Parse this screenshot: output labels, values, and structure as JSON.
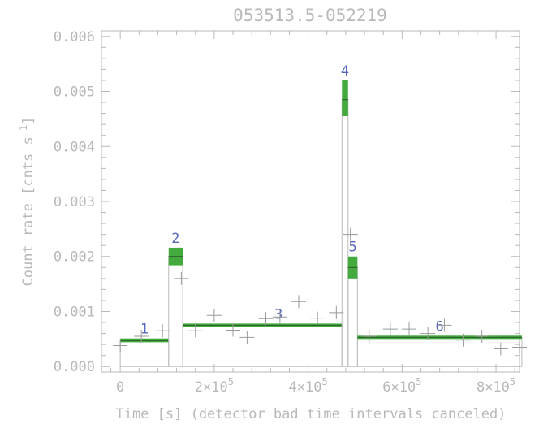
{
  "chart_data": {
    "type": "line",
    "title": "053513.5-052219",
    "xlabel": "Time [s] (detector bad time intervals canceled)",
    "ylabel": "Count rate [cnts s^-1]",
    "xlim": [
      -40000,
      850000
    ],
    "ylim": [
      -0.0001,
      0.0061
    ],
    "grid": false,
    "legend": "none",
    "colors": {
      "axis": "#b9b9b9",
      "block_fill": "#44aa3e",
      "segment_label": "#5566bb",
      "data_cross": "#999999",
      "outline": "#bbbbbb"
    },
    "x_ticks": [
      {
        "value": 0,
        "base": "0",
        "exponent": ""
      },
      {
        "value": 200000,
        "base": "2×10",
        "exponent": "5"
      },
      {
        "value": 400000,
        "base": "4×10",
        "exponent": "5"
      },
      {
        "value": 600000,
        "base": "6×10",
        "exponent": "5"
      },
      {
        "value": 800000,
        "base": "8×10",
        "exponent": "5"
      }
    ],
    "y_ticks": [
      0.0,
      0.001,
      0.002,
      0.003,
      0.004,
      0.005,
      0.006
    ],
    "y_tick_labels": [
      "0.000",
      "0.001",
      "0.002",
      "0.003",
      "0.004",
      "0.005",
      "0.006"
    ],
    "blocks": [
      {
        "label": "1",
        "x0": 0,
        "x1": 103000,
        "rate": 0.00047,
        "lo": 0.00044,
        "hi": 0.00051
      },
      {
        "label": "2",
        "x0": 103000,
        "x1": 133000,
        "rate": 0.002,
        "lo": 0.00184,
        "hi": 0.00216
      },
      {
        "label": "3",
        "x0": 133000,
        "x1": 472000,
        "rate": 0.00075,
        "lo": 0.00072,
        "hi": 0.00078
      },
      {
        "label": "4",
        "x0": 472000,
        "x1": 485000,
        "rate": 0.00485,
        "lo": 0.00455,
        "hi": 0.0052
      },
      {
        "label": "5",
        "x0": 485000,
        "x1": 505000,
        "rate": 0.0018,
        "lo": 0.0016,
        "hi": 0.002
      },
      {
        "label": "6",
        "x0": 505000,
        "x1": 855000,
        "rate": 0.00053,
        "lo": 0.0005,
        "hi": 0.00056
      }
    ],
    "binned_points": [
      {
        "x": 0,
        "y": 0.00038
      },
      {
        "x": 45000,
        "y": 0.00055
      },
      {
        "x": 90000,
        "y": 0.00065
      },
      {
        "x": 130000,
        "y": 0.0016
      },
      {
        "x": 160000,
        "y": 0.00065
      },
      {
        "x": 200000,
        "y": 0.00093
      },
      {
        "x": 240000,
        "y": 0.00066
      },
      {
        "x": 270000,
        "y": 0.00053
      },
      {
        "x": 310000,
        "y": 0.00087
      },
      {
        "x": 340000,
        "y": 0.0009
      },
      {
        "x": 380000,
        "y": 0.00118
      },
      {
        "x": 420000,
        "y": 0.00088
      },
      {
        "x": 460000,
        "y": 0.00098
      },
      {
        "x": 490000,
        "y": 0.0024
      },
      {
        "x": 530000,
        "y": 0.00055
      },
      {
        "x": 575000,
        "y": 0.00068
      },
      {
        "x": 615000,
        "y": 0.00068
      },
      {
        "x": 655000,
        "y": 0.0006
      },
      {
        "x": 690000,
        "y": 0.00075
      },
      {
        "x": 730000,
        "y": 0.00048
      },
      {
        "x": 770000,
        "y": 0.00055
      },
      {
        "x": 810000,
        "y": 0.00032
      },
      {
        "x": 850000,
        "y": 0.00035
      }
    ]
  }
}
